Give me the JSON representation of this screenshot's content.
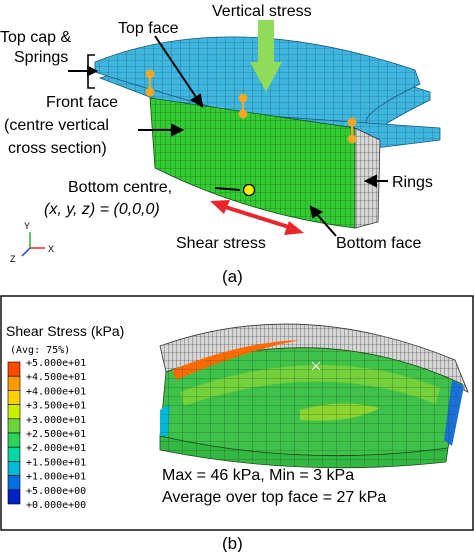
{
  "panel_a": {
    "caption": "(a)",
    "labels": {
      "top_cap_line1": "Top cap &",
      "top_cap_line2": "Springs",
      "top_face": "Top face",
      "vertical_stress": "Vertical stress",
      "front_face_line1": "Front face",
      "front_face_line2": "(centre vertical",
      "front_face_line3": "cross section)",
      "rings": "Rings",
      "bottom_centre_line1": "Bottom centre,",
      "bottom_centre_coords": "(x, y, z) = (0,0,0)",
      "shear_stress": "Shear stress",
      "bottom_face": "Bottom face"
    },
    "triad": {
      "y": "Y",
      "z": "Z",
      "x": "X"
    },
    "colors": {
      "mesh_blue": "#3fb6e0",
      "mesh_green": "#33cc33",
      "arrow_green": "#8fdc5a",
      "arrow_red": "#e8262b",
      "marker_orange": "#f5a623",
      "marker_yellow": "#ffee00"
    }
  },
  "panel_b": {
    "caption": "(b)",
    "legend_title": "Shear Stress (kPa)",
    "legend_subtitle": "(Avg: 75%)",
    "legend_entries": [
      {
        "label": "+5.000e+01",
        "color": "#ff0000"
      },
      {
        "label": "+4.500e+01",
        "color": "#ff4a00"
      },
      {
        "label": "+4.000e+01",
        "color": "#ff9900"
      },
      {
        "label": "+3.500e+01",
        "color": "#ffd000"
      },
      {
        "label": "+3.000e+01",
        "color": "#c8f000"
      },
      {
        "label": "+2.500e+01",
        "color": "#6ad43a"
      },
      {
        "label": "+2.000e+01",
        "color": "#2ad45a"
      },
      {
        "label": "+1.500e+01",
        "color": "#00d8a8"
      },
      {
        "label": "+1.000e+01",
        "color": "#00b8d8"
      },
      {
        "label": "+5.000e+00",
        "color": "#0070e0"
      },
      {
        "label": "+0.000e+00",
        "color": "#0020c8"
      }
    ],
    "stats_line1": "Max = 46 kPa, Min = 3 kPa",
    "stats_line2": "Average over top face = 27 kPa"
  }
}
